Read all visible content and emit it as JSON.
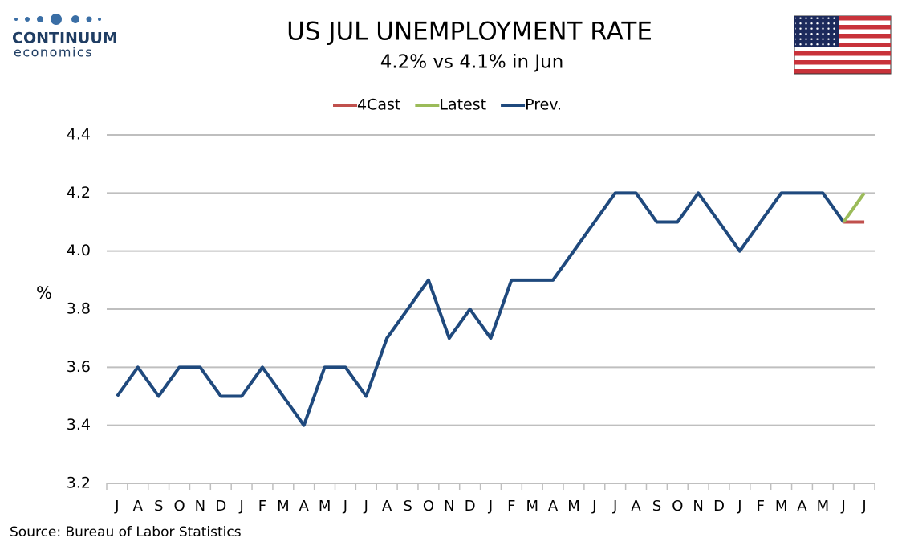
{
  "logo": {
    "name": "CONTINUUM",
    "tagline": "economics"
  },
  "chart_data": {
    "type": "line",
    "title": "US JUL UNEMPLOYMENT RATE",
    "subtitle": "4.2% vs 4.1% in Jun",
    "y_label": "%",
    "source": "Source: Bureau of Labor Statistics",
    "categories": [
      "J",
      "A",
      "S",
      "O",
      "N",
      "D",
      "J",
      "F",
      "M",
      "A",
      "M",
      "J",
      "J",
      "A",
      "S",
      "O",
      "N",
      "D",
      "J",
      "F",
      "M",
      "A",
      "M",
      "J",
      "J",
      "A",
      "S",
      "O",
      "N",
      "D",
      "J",
      "F",
      "M",
      "A",
      "M",
      "J",
      "J"
    ],
    "series": [
      {
        "name": "4Cast",
        "color": "#c0504d",
        "values": [
          null,
          null,
          null,
          null,
          null,
          null,
          null,
          null,
          null,
          null,
          null,
          null,
          null,
          null,
          null,
          null,
          null,
          null,
          null,
          null,
          null,
          null,
          null,
          null,
          null,
          null,
          null,
          null,
          null,
          null,
          null,
          null,
          null,
          null,
          null,
          4.1,
          4.1
        ]
      },
      {
        "name": "Latest",
        "color": "#9bbb59",
        "values": [
          null,
          null,
          null,
          null,
          null,
          null,
          null,
          null,
          null,
          null,
          null,
          null,
          null,
          null,
          null,
          null,
          null,
          null,
          null,
          null,
          null,
          null,
          null,
          null,
          null,
          null,
          null,
          null,
          null,
          null,
          null,
          null,
          null,
          null,
          null,
          4.1,
          4.2
        ]
      },
      {
        "name": "Prev.",
        "color": "#1f497d",
        "values": [
          3.5,
          3.6,
          3.5,
          3.6,
          3.6,
          3.5,
          3.5,
          3.6,
          3.5,
          3.4,
          3.6,
          3.6,
          3.5,
          3.7,
          3.8,
          3.9,
          3.7,
          3.8,
          3.7,
          3.9,
          3.9,
          3.9,
          4.0,
          4.1,
          4.2,
          4.2,
          4.1,
          4.1,
          4.2,
          4.1,
          4.0,
          4.1,
          4.2,
          4.2,
          4.2,
          4.1,
          null
        ]
      }
    ],
    "ylim": [
      3.2,
      4.4
    ],
    "yticks": [
      {
        "value": 3.2,
        "label": "3.2"
      },
      {
        "value": 3.4,
        "label": "3.4"
      },
      {
        "value": 3.6,
        "label": "3.6"
      },
      {
        "value": 3.8,
        "label": "3.8"
      },
      {
        "value": 4.0,
        "label": "4.0"
      },
      {
        "value": 4.2,
        "label": "4.2"
      },
      {
        "value": 4.4,
        "label": "4.4"
      }
    ],
    "grid": true,
    "legend": "top"
  }
}
